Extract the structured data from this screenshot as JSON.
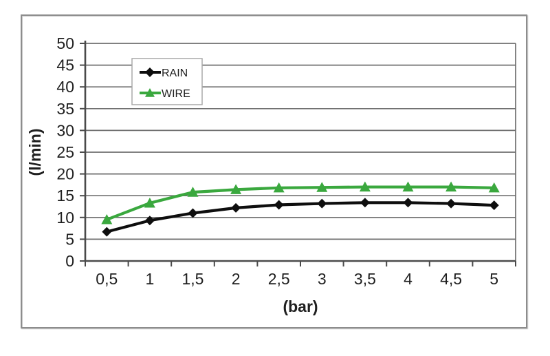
{
  "chart_data": {
    "type": "line",
    "title": "",
    "xlabel": "(bar)",
    "ylabel": "(l/min)",
    "categories": [
      "0,5",
      "1",
      "1,5",
      "2",
      "2,5",
      "3",
      "3,5",
      "4",
      "4,5",
      "5"
    ],
    "x_values": [
      0.5,
      1,
      1.5,
      2,
      2.5,
      3,
      3.5,
      4,
      4.5,
      5
    ],
    "ylim": [
      0,
      50
    ],
    "ytick_step": 5,
    "grid": "horizontal",
    "legend_position": "inside-top-left",
    "series": [
      {
        "name": "RAIN",
        "marker": "diamond",
        "color": "#0e0e0e",
        "values": [
          6.7,
          9.3,
          11.0,
          12.2,
          12.9,
          13.2,
          13.4,
          13.4,
          13.2,
          12.8
        ]
      },
      {
        "name": "WIRE",
        "marker": "triangle",
        "color": "#3aa83e",
        "values": [
          9.5,
          13.3,
          15.8,
          16.4,
          16.8,
          16.9,
          17.0,
          17.0,
          17.0,
          16.8
        ]
      }
    ]
  },
  "colors": {
    "grid_line": "#6f6f6f",
    "axis_line": "#4a4a4a",
    "tick_text": "#1f1f1f",
    "legend_border": "#a8a8a8",
    "legend_background": "#ffffff",
    "plot_background": "#ffffff"
  }
}
